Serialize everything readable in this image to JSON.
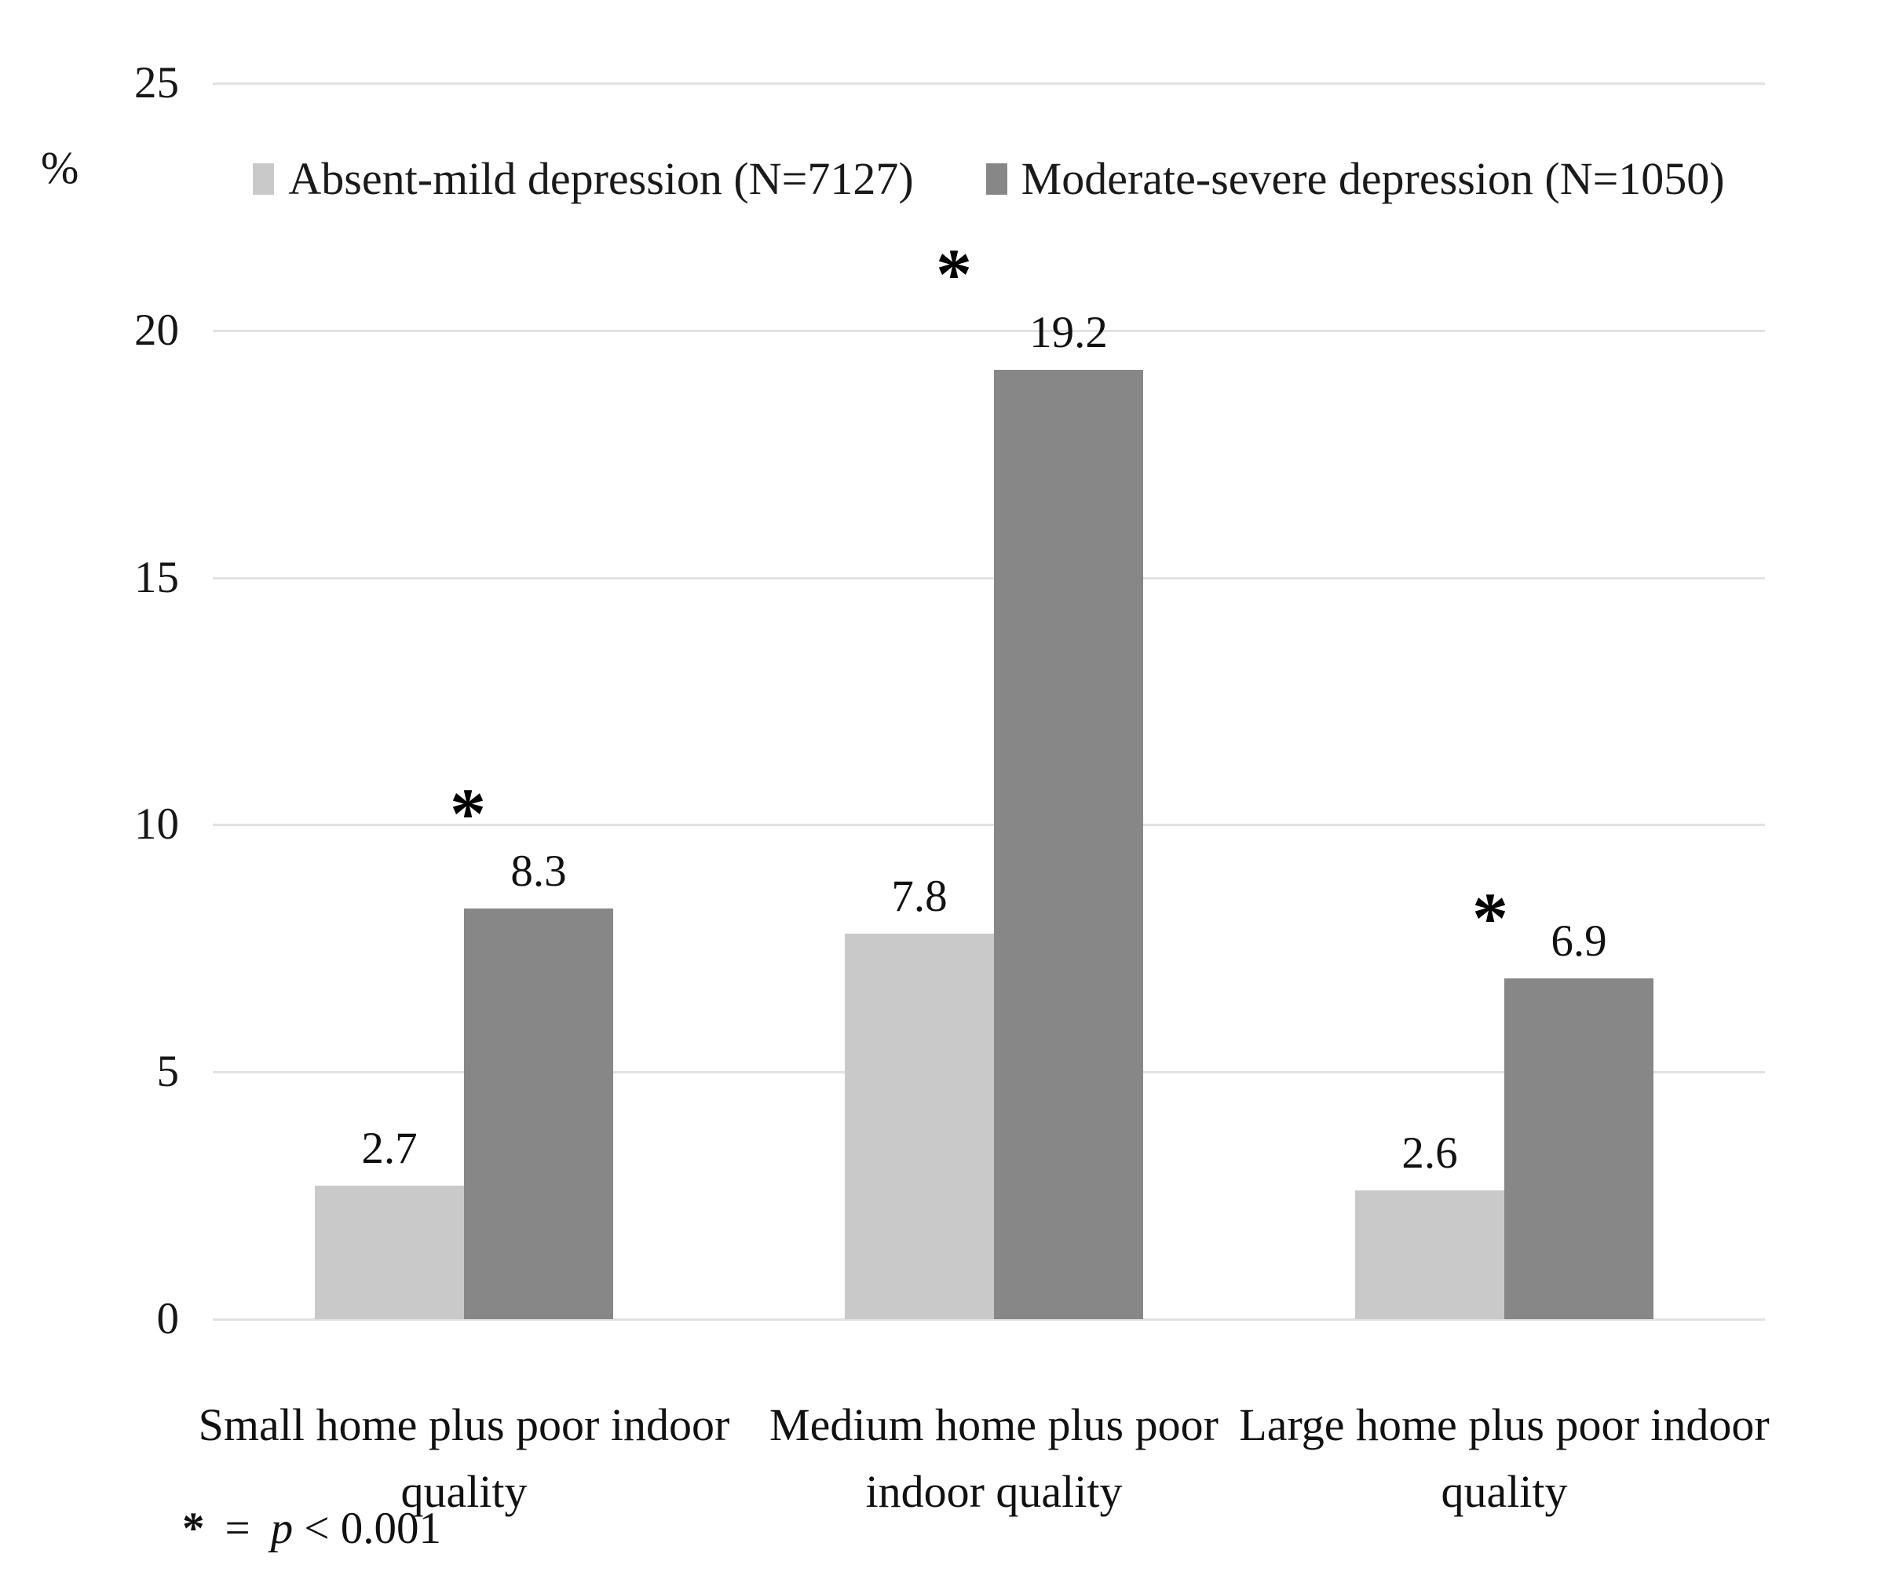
{
  "chart_data": {
    "type": "bar",
    "title": "",
    "ylabel": "%",
    "xlabel": "",
    "ylim": [
      0,
      25
    ],
    "yticks": [
      0,
      5,
      10,
      15,
      20,
      25
    ],
    "grid": true,
    "legend_position": "top-center",
    "categories": [
      "Small home plus poor indoor quality",
      "Medium home plus poor indoor quality",
      "Large home plus poor indoor quality"
    ],
    "categories_display": [
      [
        "Small home plus poor indoor",
        "quality"
      ],
      [
        "Medium home plus poor",
        "indoor quality"
      ],
      [
        "Large home plus poor indoor",
        "quality"
      ]
    ],
    "series": [
      {
        "name": "Absent-mild depression (N=7127)",
        "color": "#c9c9c9",
        "values": [
          2.7,
          7.8,
          2.6
        ]
      },
      {
        "name": "Moderate-severe depression (N=1050)",
        "color": "#878787",
        "values": [
          8.3,
          19.2,
          6.9
        ]
      }
    ],
    "significance_markers": {
      "symbol": "*",
      "per_group": [
        true,
        true,
        true
      ]
    },
    "footnote": "* = p < 0.001"
  },
  "axis": {
    "unit_label": "%"
  },
  "legend": {
    "items": [
      {
        "label": "Absent-mild depression (N=7127)"
      },
      {
        "label": "Moderate-severe depression (N=1050)"
      }
    ]
  },
  "footnote": {
    "marker": "*",
    "equals": "=",
    "p_symbol": "p",
    "condition": "< 0.001"
  }
}
